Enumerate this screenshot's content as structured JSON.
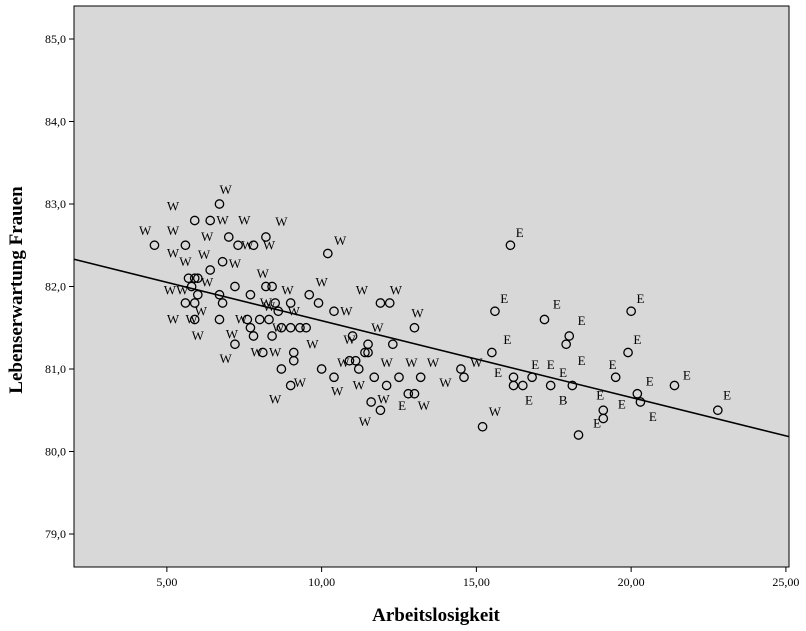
{
  "chart_data": {
    "type": "scatter",
    "xlabel": "Arbeitslosigkeit",
    "ylabel": "Lebenserwartung Frauen",
    "xlim": [
      2.0,
      25.1
    ],
    "ylim": [
      78.6,
      85.4
    ],
    "x_ticks": [
      "5,00",
      "10,00",
      "15,00",
      "20,00",
      "25,00"
    ],
    "x_tick_values": [
      5,
      10,
      15,
      20,
      25
    ],
    "y_ticks": [
      "79,0",
      "80,0",
      "81,0",
      "82,0",
      "83,0",
      "84,0",
      "85,0"
    ],
    "y_tick_values": [
      79,
      80,
      81,
      82,
      83,
      84,
      85
    ],
    "grid": false,
    "background": "#d8d8d8",
    "marker_color": "#000000",
    "fit_line": {
      "x": [
        2.0,
        25.1
      ],
      "y": [
        82.33,
        80.18
      ]
    },
    "points": [
      [
        4.6,
        82.5
      ],
      [
        5.6,
        82.5
      ],
      [
        5.9,
        82.8
      ],
      [
        6.4,
        82.8
      ],
      [
        6.7,
        83.0
      ],
      [
        7.0,
        82.6
      ],
      [
        7.3,
        82.5
      ],
      [
        7.8,
        82.5
      ],
      [
        8.2,
        82.6
      ],
      [
        5.7,
        82.1
      ],
      [
        5.9,
        82.1
      ],
      [
        6.0,
        82.1
      ],
      [
        5.8,
        82.0
      ],
      [
        6.0,
        81.9
      ],
      [
        5.6,
        81.8
      ],
      [
        5.9,
        81.8
      ],
      [
        5.9,
        81.6
      ],
      [
        6.4,
        82.2
      ],
      [
        6.8,
        82.3
      ],
      [
        6.7,
        81.9
      ],
      [
        6.8,
        81.8
      ],
      [
        6.7,
        81.6
      ],
      [
        7.2,
        82.0
      ],
      [
        7.7,
        81.9
      ],
      [
        8.2,
        82.0
      ],
      [
        8.4,
        82.0
      ],
      [
        7.6,
        81.6
      ],
      [
        7.7,
        81.5
      ],
      [
        8.0,
        81.6
      ],
      [
        8.3,
        81.6
      ],
      [
        7.8,
        81.4
      ],
      [
        8.4,
        81.4
      ],
      [
        7.2,
        81.3
      ],
      [
        8.1,
        81.2
      ],
      [
        8.5,
        81.8
      ],
      [
        8.6,
        81.7
      ],
      [
        8.7,
        81.5
      ],
      [
        9.0,
        81.8
      ],
      [
        9.0,
        81.5
      ],
      [
        9.3,
        81.5
      ],
      [
        9.5,
        81.5
      ],
      [
        9.1,
        81.2
      ],
      [
        9.1,
        81.1
      ],
      [
        9.0,
        80.8
      ],
      [
        8.7,
        81.0
      ],
      [
        9.6,
        81.9
      ],
      [
        9.9,
        81.8
      ],
      [
        10.2,
        82.4
      ],
      [
        10.4,
        81.7
      ],
      [
        10.0,
        81.0
      ],
      [
        10.4,
        80.9
      ],
      [
        11.0,
        81.4
      ],
      [
        10.9,
        81.1
      ],
      [
        11.1,
        81.1
      ],
      [
        11.2,
        81.0
      ],
      [
        11.5,
        81.3
      ],
      [
        11.4,
        81.2
      ],
      [
        11.5,
        81.2
      ],
      [
        11.7,
        80.9
      ],
      [
        11.9,
        81.8
      ],
      [
        12.2,
        81.8
      ],
      [
        12.3,
        81.3
      ],
      [
        12.1,
        80.8
      ],
      [
        11.6,
        80.6
      ],
      [
        11.9,
        80.5
      ],
      [
        12.5,
        80.9
      ],
      [
        12.8,
        80.7
      ],
      [
        13.0,
        81.5
      ],
      [
        13.0,
        80.7
      ],
      [
        13.2,
        80.9
      ],
      [
        14.5,
        81.0
      ],
      [
        14.6,
        80.9
      ],
      [
        15.2,
        80.3
      ],
      [
        15.5,
        81.2
      ],
      [
        15.6,
        81.7
      ],
      [
        16.1,
        82.5
      ],
      [
        16.2,
        80.9
      ],
      [
        16.2,
        80.8
      ],
      [
        16.5,
        80.8
      ],
      [
        16.8,
        80.9
      ],
      [
        17.2,
        81.6
      ],
      [
        17.4,
        80.8
      ],
      [
        18.0,
        81.4
      ],
      [
        17.9,
        81.3
      ],
      [
        18.1,
        80.8
      ],
      [
        18.3,
        80.2
      ],
      [
        19.1,
        80.5
      ],
      [
        19.1,
        80.4
      ],
      [
        19.5,
        80.9
      ],
      [
        19.9,
        81.2
      ],
      [
        20.0,
        81.7
      ],
      [
        20.2,
        80.7
      ],
      [
        20.3,
        80.6
      ],
      [
        21.4,
        80.8
      ],
      [
        22.8,
        80.5
      ]
    ],
    "labels": [
      {
        "text": "W",
        "x": 6.9,
        "y": 83.17
      },
      {
        "text": "W",
        "x": 5.2,
        "y": 82.97
      },
      {
        "text": "W",
        "x": 4.3,
        "y": 82.67
      },
      {
        "text": "W",
        "x": 5.2,
        "y": 82.67
      },
      {
        "text": "W",
        "x": 6.8,
        "y": 82.8
      },
      {
        "text": "W",
        "x": 7.5,
        "y": 82.8
      },
      {
        "text": "W",
        "x": 8.7,
        "y": 82.78
      },
      {
        "text": "W",
        "x": 6.3,
        "y": 82.6
      },
      {
        "text": "W",
        "x": 7.6,
        "y": 82.5
      },
      {
        "text": "W",
        "x": 8.3,
        "y": 82.5
      },
      {
        "text": "W",
        "x": 10.6,
        "y": 82.55
      },
      {
        "text": "W",
        "x": 5.2,
        "y": 82.4
      },
      {
        "text": "W",
        "x": 6.2,
        "y": 82.38
      },
      {
        "text": "W",
        "x": 5.6,
        "y": 82.3
      },
      {
        "text": "W",
        "x": 7.2,
        "y": 82.27
      },
      {
        "text": "W",
        "x": 8.1,
        "y": 82.15
      },
      {
        "text": "W",
        "x": 6.3,
        "y": 82.05
      },
      {
        "text": "W",
        "x": 10.0,
        "y": 82.05
      },
      {
        "text": "W",
        "x": 5.1,
        "y": 81.95
      },
      {
        "text": "W",
        "x": 5.5,
        "y": 81.95
      },
      {
        "text": "W",
        "x": 8.9,
        "y": 81.95
      },
      {
        "text": "W",
        "x": 11.3,
        "y": 81.95
      },
      {
        "text": "W",
        "x": 12.4,
        "y": 81.95
      },
      {
        "text": "W",
        "x": 8.2,
        "y": 81.8
      },
      {
        "text": "W",
        "x": 8.3,
        "y": 81.75
      },
      {
        "text": "W",
        "x": 9.1,
        "y": 81.7
      },
      {
        "text": "W",
        "x": 6.1,
        "y": 81.7
      },
      {
        "text": "W",
        "x": 10.8,
        "y": 81.7
      },
      {
        "text": "W",
        "x": 13.1,
        "y": 81.67
      },
      {
        "text": "W",
        "x": 5.2,
        "y": 81.6
      },
      {
        "text": "W",
        "x": 5.8,
        "y": 81.6
      },
      {
        "text": "W",
        "x": 7.4,
        "y": 81.6
      },
      {
        "text": "W",
        "x": 8.6,
        "y": 81.5
      },
      {
        "text": "W",
        "x": 11.8,
        "y": 81.5
      },
      {
        "text": "W",
        "x": 6.0,
        "y": 81.4
      },
      {
        "text": "W",
        "x": 7.1,
        "y": 81.42
      },
      {
        "text": "W",
        "x": 10.9,
        "y": 81.35
      },
      {
        "text": "W",
        "x": 9.7,
        "y": 81.3
      },
      {
        "text": "W",
        "x": 7.9,
        "y": 81.2
      },
      {
        "text": "W",
        "x": 8.5,
        "y": 81.2
      },
      {
        "text": "W",
        "x": 6.9,
        "y": 81.12
      },
      {
        "text": "W",
        "x": 10.7,
        "y": 81.07
      },
      {
        "text": "W",
        "x": 12.1,
        "y": 81.07
      },
      {
        "text": "W",
        "x": 12.9,
        "y": 81.07
      },
      {
        "text": "W",
        "x": 13.6,
        "y": 81.07
      },
      {
        "text": "W",
        "x": 15.0,
        "y": 81.07
      },
      {
        "text": "W",
        "x": 9.3,
        "y": 80.83
      },
      {
        "text": "W",
        "x": 10.5,
        "y": 80.73
      },
      {
        "text": "W",
        "x": 11.2,
        "y": 80.8
      },
      {
        "text": "W",
        "x": 14.0,
        "y": 80.83
      },
      {
        "text": "W",
        "x": 8.5,
        "y": 80.63
      },
      {
        "text": "W",
        "x": 12.0,
        "y": 80.63
      },
      {
        "text": "W",
        "x": 13.3,
        "y": 80.55
      },
      {
        "text": "W",
        "x": 11.4,
        "y": 80.36
      },
      {
        "text": "W",
        "x": 15.6,
        "y": 80.48
      },
      {
        "text": "E",
        "x": 12.6,
        "y": 80.55
      },
      {
        "text": "E",
        "x": 16.4,
        "y": 82.65
      },
      {
        "text": "E",
        "x": 15.9,
        "y": 81.85
      },
      {
        "text": "E",
        "x": 17.6,
        "y": 81.78
      },
      {
        "text": "E",
        "x": 20.3,
        "y": 81.85
      },
      {
        "text": "E",
        "x": 18.4,
        "y": 81.58
      },
      {
        "text": "E",
        "x": 16.0,
        "y": 81.35
      },
      {
        "text": "E",
        "x": 20.2,
        "y": 81.35
      },
      {
        "text": "E",
        "x": 19.4,
        "y": 81.05
      },
      {
        "text": "E",
        "x": 16.9,
        "y": 81.05
      },
      {
        "text": "E",
        "x": 18.4,
        "y": 81.1
      },
      {
        "text": "E",
        "x": 17.4,
        "y": 81.05
      },
      {
        "text": "E",
        "x": 15.7,
        "y": 80.95
      },
      {
        "text": "E",
        "x": 17.8,
        "y": 80.95
      },
      {
        "text": "E",
        "x": 20.6,
        "y": 80.85
      },
      {
        "text": "E",
        "x": 21.8,
        "y": 80.92
      },
      {
        "text": "E",
        "x": 19.0,
        "y": 80.68
      },
      {
        "text": "E",
        "x": 16.7,
        "y": 80.62
      },
      {
        "text": "E",
        "x": 19.7,
        "y": 80.57
      },
      {
        "text": "E",
        "x": 23.1,
        "y": 80.68
      },
      {
        "text": "E",
        "x": 18.9,
        "y": 80.34
      },
      {
        "text": "E",
        "x": 20.7,
        "y": 80.42
      },
      {
        "text": "B",
        "x": 17.8,
        "y": 80.62
      }
    ]
  }
}
